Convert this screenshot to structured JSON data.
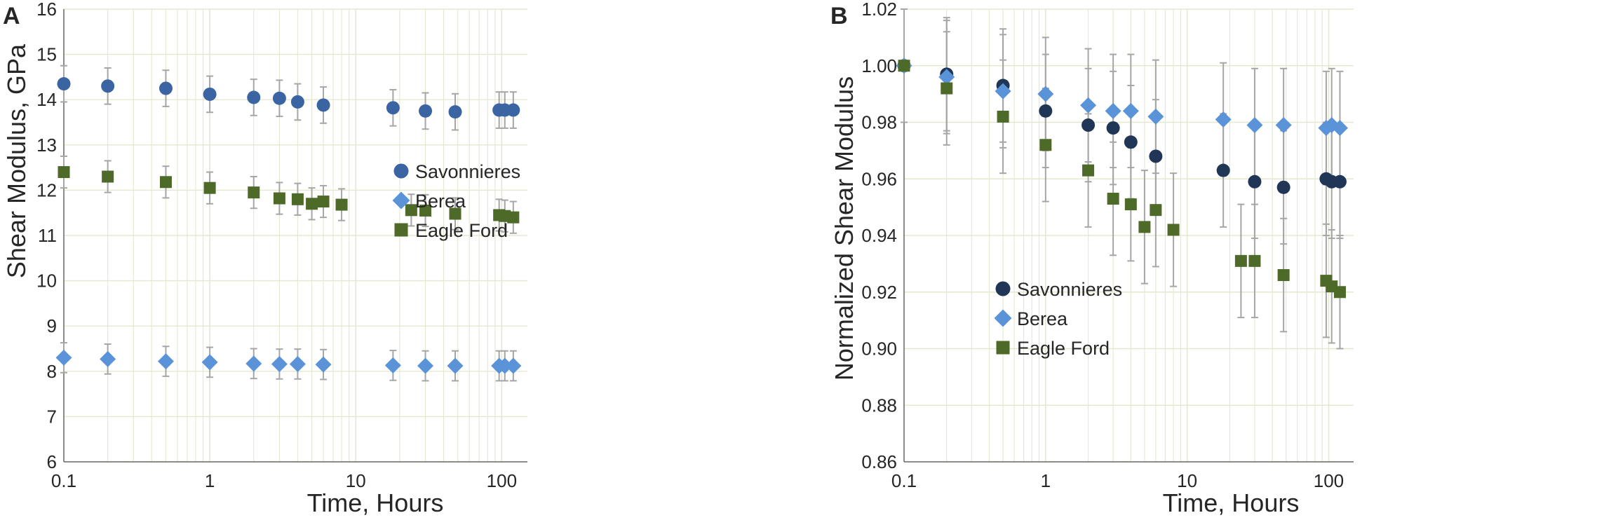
{
  "colors": {
    "savonnieres": "#3b64a3",
    "savonnieres_b": "#1f3657",
    "berea": "#5b93d9",
    "eagle_ford": "#4e6a28",
    "error_bar": "#a6a6a6",
    "grid": "#e4e8cf",
    "axis": "#6a6a6a"
  },
  "chart_data": [
    {
      "panel": "A",
      "type": "scatter",
      "xscale": "log",
      "xlim": [
        0.1,
        150
      ],
      "ylim": [
        6,
        16
      ],
      "xticks": [
        0.1,
        1,
        10,
        100
      ],
      "xtick_labels": [
        "0.1",
        "1",
        "10",
        "100"
      ],
      "yticks": [
        6,
        7,
        8,
        9,
        10,
        11,
        12,
        13,
        14,
        15,
        16
      ],
      "ytick_labels": [
        "6",
        "7",
        "8",
        "9",
        "10",
        "11",
        "12",
        "13",
        "14",
        "15",
        "16"
      ],
      "xlabel": "Time,  Hours",
      "ylabel": "Shear Modulus, GPa",
      "legend": "right",
      "series": [
        {
          "name": "Savonnieres",
          "marker": "circle",
          "x": [
            0.1,
            0.2,
            0.5,
            1,
            2,
            3,
            4,
            6,
            18,
            30,
            48,
            96,
            105,
            120
          ],
          "y": [
            14.35,
            14.3,
            14.25,
            14.12,
            14.05,
            14.03,
            13.95,
            13.88,
            13.82,
            13.75,
            13.73,
            13.77,
            13.77,
            13.77
          ],
          "err": [
            0.4,
            0.4,
            0.4,
            0.4,
            0.4,
            0.4,
            0.4,
            0.4,
            0.4,
            0.4,
            0.4,
            0.4,
            0.4,
            0.4
          ]
        },
        {
          "name": "Berea",
          "marker": "diamond",
          "x": [
            0.1,
            0.2,
            0.5,
            1,
            2,
            3,
            4,
            6,
            18,
            30,
            48,
            96,
            105,
            120
          ],
          "y": [
            8.3,
            8.27,
            8.22,
            8.2,
            8.17,
            8.16,
            8.16,
            8.15,
            8.13,
            8.12,
            8.12,
            8.12,
            8.12,
            8.12
          ],
          "err": [
            0.33,
            0.33,
            0.33,
            0.33,
            0.33,
            0.33,
            0.33,
            0.33,
            0.33,
            0.33,
            0.33,
            0.33,
            0.33,
            0.33
          ]
        },
        {
          "name": "Eagle Ford",
          "marker": "square",
          "x": [
            0.1,
            0.2,
            0.5,
            1,
            2,
            3,
            4,
            5,
            6,
            8,
            24,
            30,
            48,
            96,
            105,
            120
          ],
          "y": [
            12.4,
            12.3,
            12.18,
            12.05,
            11.95,
            11.82,
            11.8,
            11.7,
            11.75,
            11.68,
            11.56,
            11.55,
            11.48,
            11.45,
            11.43,
            11.4
          ],
          "err": [
            0.35,
            0.35,
            0.35,
            0.35,
            0.35,
            0.35,
            0.35,
            0.35,
            0.35,
            0.35,
            0.35,
            0.35,
            0.35,
            0.35,
            0.35,
            0.35
          ]
        }
      ]
    },
    {
      "panel": "B",
      "type": "scatter",
      "xscale": "log",
      "xlim": [
        0.1,
        150
      ],
      "ylim": [
        0.86,
        1.02
      ],
      "xticks": [
        0.1,
        1,
        10,
        100
      ],
      "xtick_labels": [
        "0.1",
        "1",
        "10",
        "100"
      ],
      "yticks": [
        0.86,
        0.88,
        0.9,
        0.92,
        0.94,
        0.96,
        0.98,
        1.0,
        1.02
      ],
      "ytick_labels": [
        "0.86",
        "0.88",
        "0.90",
        "0.92",
        "0.94",
        "0.96",
        "0.98",
        "1.00",
        "1.02"
      ],
      "xlabel": "Time,  Hours",
      "ylabel": "Normalized Shear Modulus",
      "legend": "left",
      "series": [
        {
          "name": "Savonnieres",
          "marker": "circle",
          "x": [
            0.1,
            0.2,
            0.5,
            1,
            2,
            3,
            4,
            6,
            18,
            30,
            48,
            96,
            105,
            120
          ],
          "y": [
            1.0,
            0.997,
            0.993,
            0.984,
            0.979,
            0.978,
            0.973,
            0.968,
            0.963,
            0.959,
            0.957,
            0.96,
            0.959,
            0.959
          ],
          "err": [
            0.02,
            0.02,
            0.02,
            0.02,
            0.02,
            0.02,
            0.02,
            0.02,
            0.02,
            0.02,
            0.02,
            0.02,
            0.02,
            0.02
          ]
        },
        {
          "name": "Berea",
          "marker": "diamond",
          "x": [
            0.1,
            0.2,
            0.5,
            1,
            2,
            3,
            4,
            6,
            18,
            30,
            48,
            96,
            105,
            120
          ],
          "y": [
            1.0,
            0.996,
            0.991,
            0.99,
            0.986,
            0.984,
            0.984,
            0.982,
            0.981,
            0.979,
            0.979,
            0.978,
            0.979,
            0.978
          ],
          "err": [
            0.02,
            0.02,
            0.02,
            0.02,
            0.02,
            0.02,
            0.02,
            0.02,
            0.02,
            0.02,
            0.02,
            0.02,
            0.02,
            0.02
          ]
        },
        {
          "name": "Eagle Ford",
          "marker": "square",
          "x": [
            0.1,
            0.2,
            0.5,
            1,
            2,
            3,
            4,
            5,
            6,
            8,
            24,
            30,
            48,
            96,
            105,
            120
          ],
          "y": [
            1.0,
            0.992,
            0.982,
            0.972,
            0.963,
            0.953,
            0.951,
            0.943,
            0.949,
            0.942,
            0.931,
            0.931,
            0.926,
            0.924,
            0.922,
            0.92
          ],
          "err": [
            0.02,
            0.02,
            0.02,
            0.02,
            0.02,
            0.02,
            0.02,
            0.02,
            0.02,
            0.02,
            0.02,
            0.02,
            0.02,
            0.02,
            0.02,
            0.02
          ]
        }
      ]
    }
  ]
}
